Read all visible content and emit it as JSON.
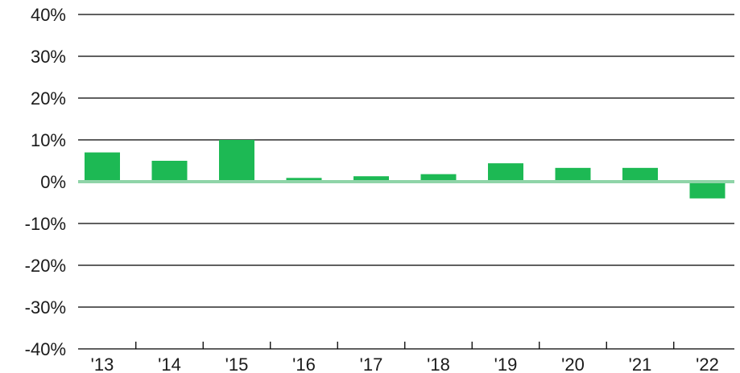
{
  "chart_data": {
    "type": "bar",
    "categories": [
      "'13",
      "'14",
      "'15",
      "'16",
      "'17",
      "'18",
      "'19",
      "'20",
      "'21",
      "'22"
    ],
    "values": [
      7.0,
      5.0,
      10.0,
      0.9,
      1.3,
      1.8,
      4.4,
      3.3,
      3.3,
      -4.0
    ],
    "ylim": [
      -40,
      40
    ],
    "yticks": [
      40,
      30,
      20,
      10,
      0,
      -10,
      -20,
      -30,
      -40
    ],
    "ytick_labels": [
      "40%",
      "30%",
      "20%",
      "10%",
      "0%",
      "-10%",
      "-20%",
      "-30%",
      "-40%"
    ],
    "title": "",
    "xlabel": "",
    "ylabel": "",
    "grid": true,
    "legend": "none",
    "colors": {
      "bar": "#1db954",
      "zero_line": "#8fd4a8",
      "grid": "#000000",
      "text": "#1a1a1a"
    }
  }
}
